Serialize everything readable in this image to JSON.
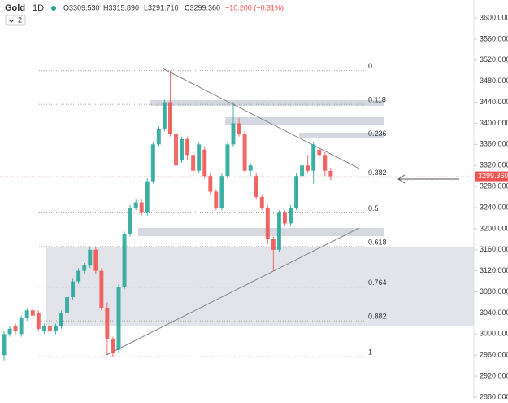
{
  "header": {
    "symbol": "Gold",
    "interval": "1D",
    "open": "O3309.530",
    "high": "H3315.890",
    "low": "L3291.710",
    "close": "C3299.360",
    "change": "−10.200 (−0.31%)",
    "indicators": "2"
  },
  "chart_data": {
    "type": "candlestick",
    "up_color": "#26a69a",
    "down_color": "#ef5350",
    "open": [
      2960,
      3000,
      3015,
      3000,
      3030,
      3045,
      3040,
      3005,
      3015,
      3005,
      3015,
      3040,
      3070,
      3100,
      3120,
      3130,
      3160,
      3120,
      3050,
      2990,
      2970,
      3090,
      3190,
      3240,
      3250,
      3230,
      3290,
      3360,
      3390,
      3440,
      3380,
      3330,
      3370,
      3340,
      3310,
      3350,
      3300,
      3270,
      3240,
      3300,
      3360,
      3400,
      3380,
      3310,
      3300,
      3260,
      3240,
      3180,
      3160,
      3230,
      3210,
      3240,
      3300,
      3320,
      3310,
      3350,
      3340,
      3309.53
    ],
    "high": [
      3005,
      3015,
      3020,
      3035,
      3050,
      3050,
      3045,
      3020,
      3020,
      3020,
      3045,
      3075,
      3105,
      3125,
      3135,
      3165,
      3165,
      3125,
      3060,
      2995,
      3095,
      3195,
      3245,
      3255,
      3255,
      3295,
      3365,
      3395,
      3445,
      3500,
      3385,
      3375,
      3375,
      3345,
      3365,
      3355,
      3305,
      3275,
      3305,
      3365,
      3440,
      3410,
      3385,
      3325,
      3305,
      3265,
      3245,
      3185,
      3235,
      3235,
      3245,
      3305,
      3325,
      3340,
      3365,
      3355,
      3345,
      3315.89
    ],
    "low": [
      2950,
      2995,
      3000,
      2995,
      3025,
      3030,
      3005,
      3000,
      3000,
      3000,
      3010,
      3035,
      3065,
      3095,
      3115,
      3125,
      3115,
      3045,
      2960,
      2957,
      2965,
      3085,
      3185,
      3235,
      3225,
      3225,
      3285,
      3355,
      3385,
      3375,
      3320,
      3325,
      3330,
      3300,
      3305,
      3295,
      3265,
      3235,
      3235,
      3295,
      3355,
      3375,
      3305,
      3300,
      3255,
      3235,
      3170,
      3120,
      3155,
      3205,
      3205,
      3235,
      3295,
      3305,
      3285,
      3335,
      3300,
      3291.71
    ],
    "close": [
      3000,
      3010,
      3005,
      3030,
      3045,
      3035,
      3010,
      3015,
      3005,
      3015,
      3040,
      3070,
      3100,
      3120,
      3130,
      3160,
      3120,
      3050,
      2990,
      2965,
      3090,
      3190,
      3240,
      3250,
      3230,
      3290,
      3360,
      3390,
      3440,
      3380,
      3320,
      3370,
      3340,
      3310,
      3360,
      3300,
      3270,
      3240,
      3300,
      3360,
      3400,
      3380,
      3310,
      3320,
      3260,
      3240,
      3180,
      3160,
      3230,
      3210,
      3240,
      3300,
      3320,
      3310,
      3360,
      3340,
      3310,
      3299.36
    ],
    "ylim": [
      2880,
      3600
    ],
    "yticks": [
      {
        "value": 2880,
        "label": "2880.000"
      },
      {
        "value": 2920,
        "label": "2920.000"
      },
      {
        "value": 2960,
        "label": "2960.000"
      },
      {
        "value": 3000,
        "label": "3000.000"
      },
      {
        "value": 3040,
        "label": "3040.000"
      },
      {
        "value": 3080,
        "label": "3080.000"
      },
      {
        "value": 3120,
        "label": "3120.000"
      },
      {
        "value": 3160,
        "label": "3160.000"
      },
      {
        "value": 3200,
        "label": "3200.000"
      },
      {
        "value": 3240,
        "label": "3240.000"
      },
      {
        "value": 3280,
        "label": "3280.000"
      },
      {
        "value": 3320,
        "label": "3320.000"
      },
      {
        "value": 3360,
        "label": "3360.000"
      },
      {
        "value": 3400,
        "label": "3400.000"
      },
      {
        "value": 3440,
        "label": "3440.000"
      },
      {
        "value": 3480,
        "label": "3480.000"
      },
      {
        "value": 3520,
        "label": "3520.000"
      },
      {
        "value": 3560,
        "label": "3560.000"
      },
      {
        "value": 3600,
        "label": "3600.000"
      }
    ],
    "last_price": {
      "value": 3299.36,
      "label": "3299.360"
    },
    "fib_levels": [
      {
        "label": "0",
        "price": 3500
      },
      {
        "label": "0.118",
        "price": 3436
      },
      {
        "label": "0.236",
        "price": 3372
      },
      {
        "label": "0.382",
        "price": 3298
      },
      {
        "label": "0.5",
        "price": 3230
      },
      {
        "label": "0.618",
        "price": 3166
      },
      {
        "label": "0.764",
        "price": 3089
      },
      {
        "label": "0.882",
        "price": 3025
      },
      {
        "label": "1",
        "price": 2957
      }
    ]
  }
}
